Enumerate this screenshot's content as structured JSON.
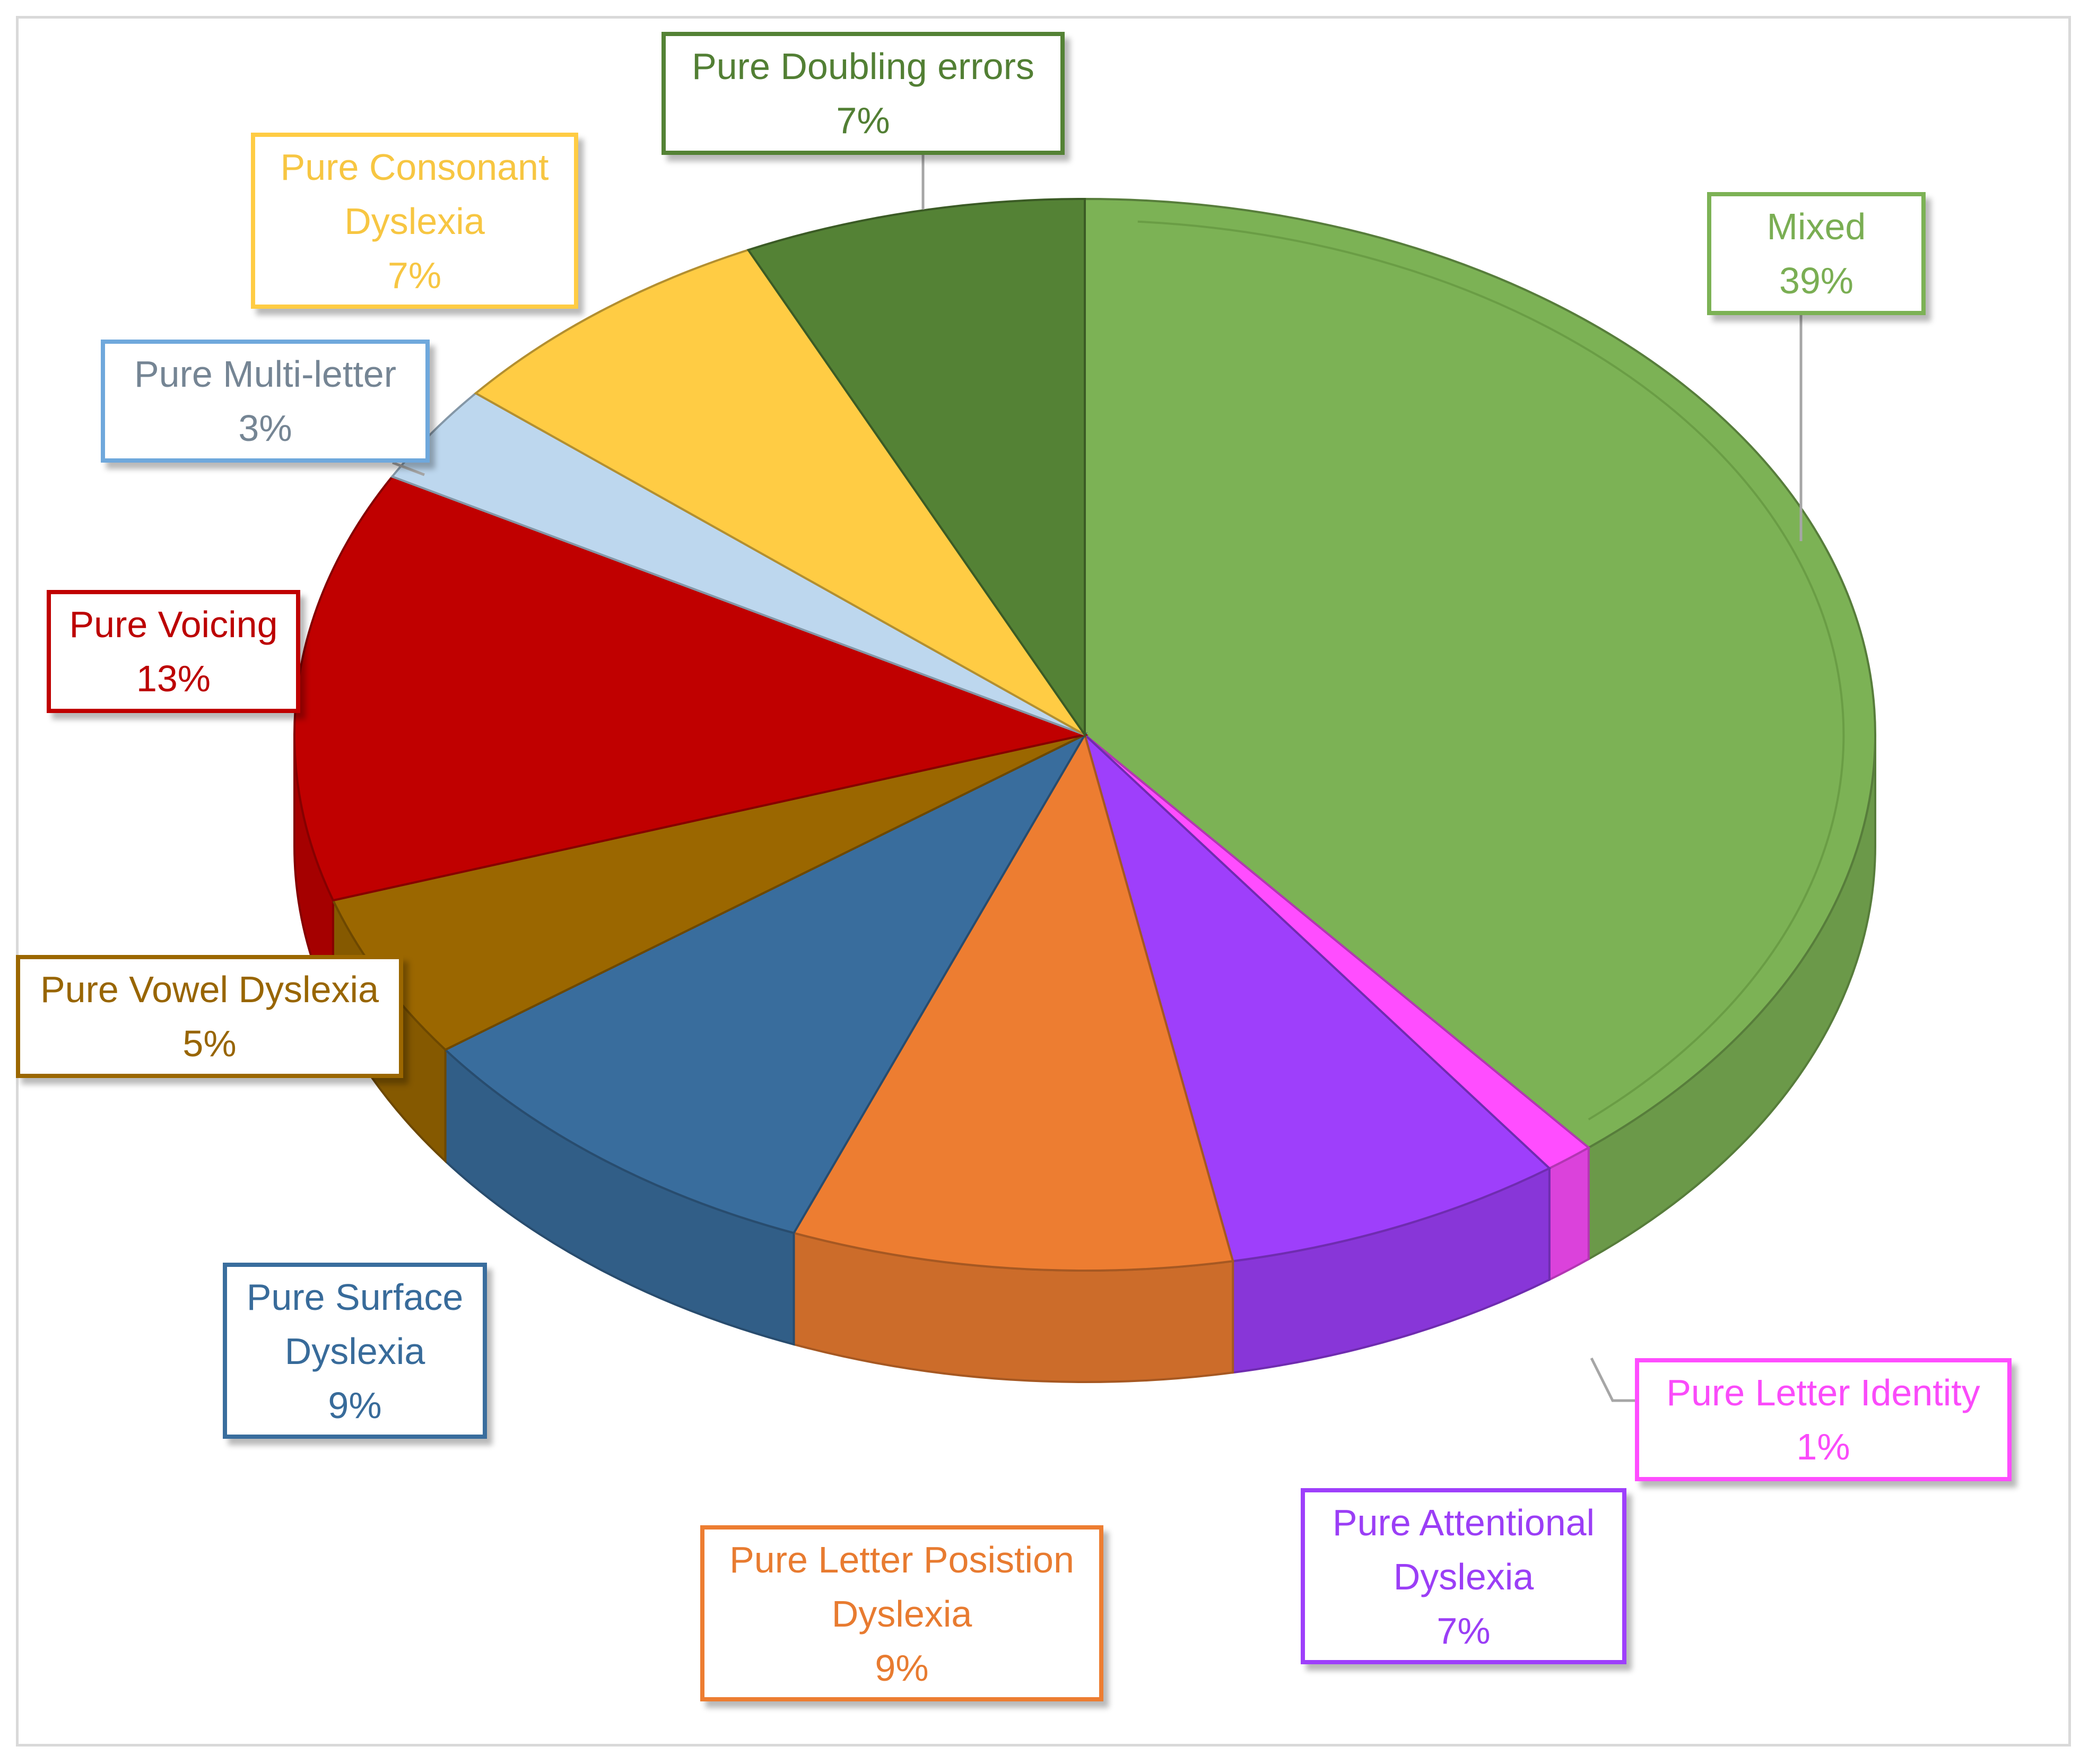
{
  "chart_data": {
    "type": "pie",
    "style": "3d",
    "title": "",
    "legend": "none",
    "slices": [
      {
        "label": "Mixed",
        "percent_label": "39%",
        "value": 39,
        "color": "#7cb255"
      },
      {
        "label": "Pure Letter Identity",
        "percent_label": "1%",
        "value": 1,
        "color": "#ff4dff"
      },
      {
        "label": "Pure Attentional Dyslexia",
        "percent_label": "7%",
        "value": 7,
        "color": "#9e3ffb"
      },
      {
        "label": "Pure Letter Posistion Dyslexia",
        "percent_label": "9%",
        "value": 9,
        "color": "#ed7d31"
      },
      {
        "label": "Pure  Surface Dyslexia",
        "percent_label": "9%",
        "value": 9,
        "color": "#396d9d"
      },
      {
        "label": "Pure Vowel Dyslexia",
        "percent_label": "5%",
        "value": 5,
        "color": "#9b6700"
      },
      {
        "label": "Pure Voicing",
        "percent_label": "13%",
        "value": 13,
        "color": "#c00000"
      },
      {
        "label": "Pure Multi-letter",
        "percent_label": "3%",
        "value": 3,
        "color": "#bdd7ee"
      },
      {
        "label": "Pure  Consonant Dyslexia",
        "percent_label": "7%",
        "value": 7,
        "color": "#ffcc44"
      },
      {
        "label": "Pure Doubling errors",
        "percent_label": "7%",
        "value": 7,
        "color": "#548235"
      }
    ]
  }
}
